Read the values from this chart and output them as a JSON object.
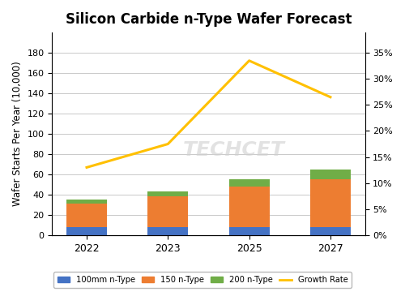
{
  "title": "Silicon Carbide n-Type Wafer Forecast",
  "years": [
    2022,
    2023,
    2025,
    2027
  ],
  "bar_100mm": [
    8,
    8,
    8,
    8
  ],
  "bar_150mm": [
    23,
    30,
    40,
    47
  ],
  "bar_200mm": [
    4,
    5,
    7,
    10
  ],
  "growth_rate": [
    0.13,
    0.175,
    0.335,
    0.265
  ],
  "color_100mm": "#4472C4",
  "color_150mm": "#ED7D31",
  "color_200mm": "#70AD47",
  "color_growth": "#FFC000",
  "ylabel_left": "Wafer Starts Per Year (10,000)",
  "ylim_left": [
    0,
    200
  ],
  "ylim_right": [
    0,
    0.389
  ],
  "yticks_left": [
    0,
    20,
    40,
    60,
    80,
    100,
    120,
    140,
    160,
    180
  ],
  "yticks_right": [
    0.0,
    0.05,
    0.1,
    0.15,
    0.2,
    0.25,
    0.3,
    0.35
  ],
  "ytick_right_labels": [
    "0%",
    "5%",
    "10%",
    "15%",
    "20%",
    "25%",
    "30%",
    "35%"
  ],
  "legend_labels": [
    "100mm n-Type",
    "150 n-Type",
    "200 n-Type",
    "Growth Rate"
  ],
  "watermark": "TECHCET",
  "bar_width": 0.5
}
